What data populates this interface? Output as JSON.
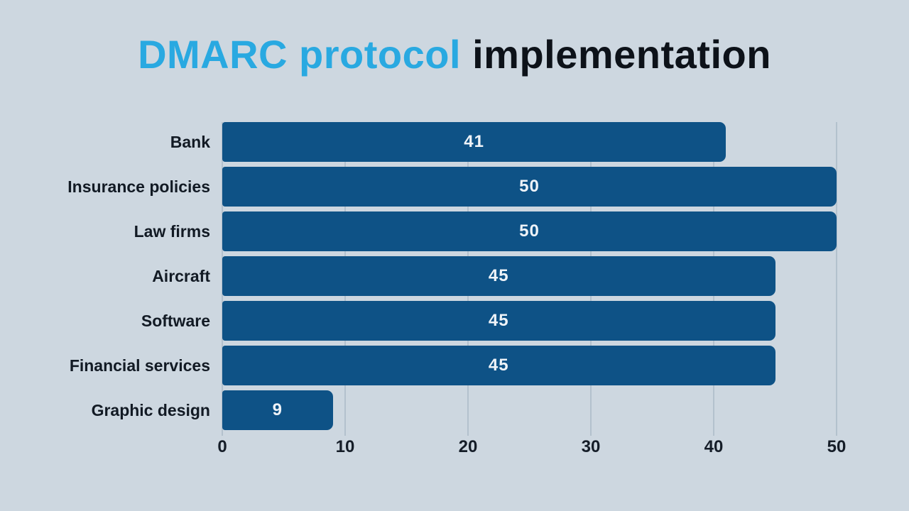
{
  "title": {
    "highlight": "DMARC protocol",
    "rest": " implementation"
  },
  "chart_data": {
    "type": "bar",
    "orientation": "horizontal",
    "title": "DMARC protocol implementation",
    "categories": [
      "Bank",
      "Insurance policies",
      "Law firms",
      "Aircraft",
      "Software",
      "Financial services",
      "Graphic design"
    ],
    "values": [
      41,
      50,
      50,
      45,
      45,
      45,
      9
    ],
    "xlabel": "",
    "ylabel": "",
    "xlim": [
      0,
      50
    ],
    "xticks": [
      0,
      10,
      20,
      30,
      40,
      50
    ],
    "grid": true,
    "legend": false,
    "value_label_position": "center"
  },
  "colors": {
    "background": "#cdd7e0",
    "bar": "#0e5286",
    "title_highlight": "#29a9e1",
    "title_text": "#0d1219",
    "category_label": "#121a24",
    "value_label": "#eef3f8",
    "tick_label": "#151d28",
    "gridline": "#b3c1cd"
  }
}
